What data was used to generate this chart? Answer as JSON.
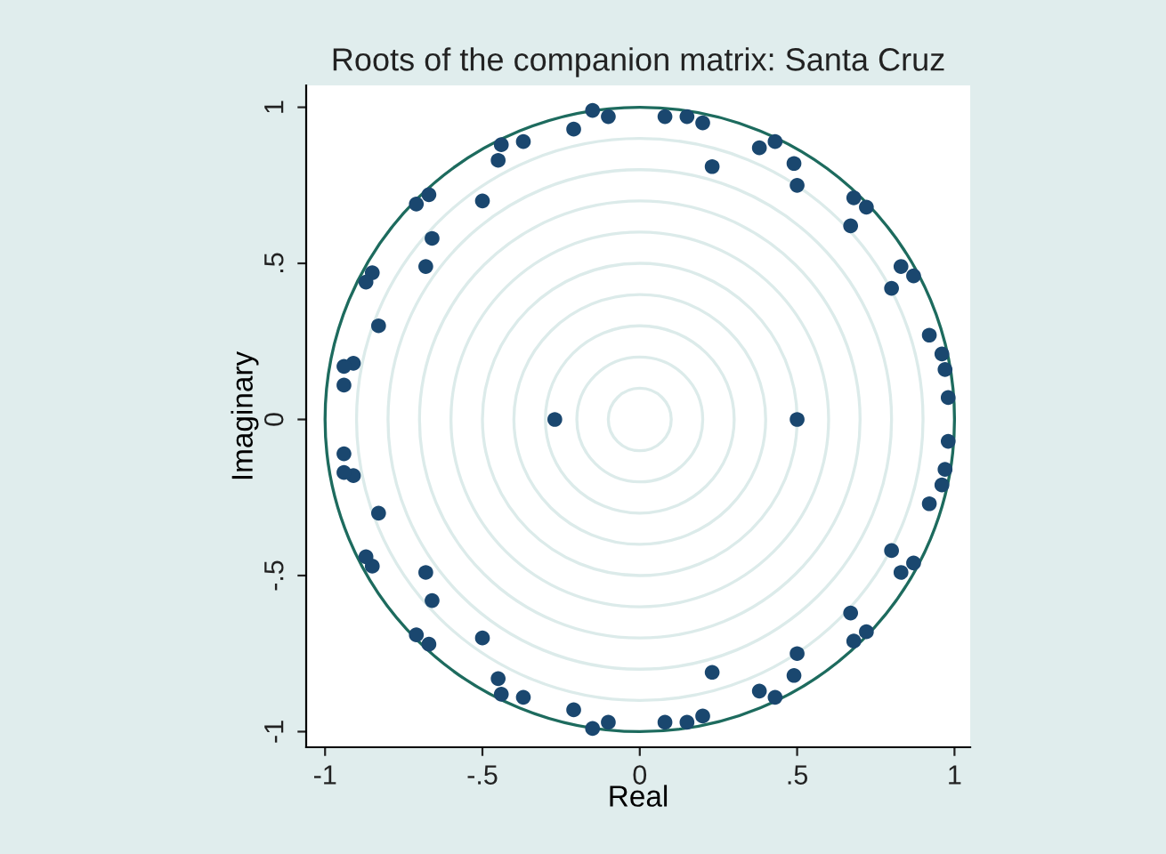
{
  "chart_data": {
    "type": "scatter",
    "title": "Roots of the companion matrix: Santa Cruz",
    "xlabel": "Real",
    "ylabel": "Imaginary",
    "x": [
      -0.15,
      -0.1,
      -0.21,
      -0.37,
      -0.44,
      -0.45,
      -0.67,
      -0.71,
      -0.5,
      -0.66,
      -0.68,
      -0.85,
      -0.87,
      -0.83,
      -0.91,
      -0.94,
      -0.94,
      -0.27,
      0.08,
      0.15,
      0.2,
      0.23,
      0.38,
      0.43,
      0.49,
      0.5,
      0.68,
      0.72,
      0.67,
      0.83,
      0.87,
      0.8,
      0.92,
      0.96,
      0.97,
      0.98,
      0.5,
      -0.15,
      -0.1,
      -0.21,
      -0.37,
      -0.44,
      -0.45,
      -0.67,
      -0.71,
      -0.5,
      -0.66,
      -0.68,
      -0.85,
      -0.87,
      -0.83,
      -0.91,
      -0.94,
      -0.94,
      0.08,
      0.15,
      0.2,
      0.23,
      0.38,
      0.43,
      0.49,
      0.5,
      0.68,
      0.72,
      0.67,
      0.83,
      0.87,
      0.8,
      0.92,
      0.96,
      0.97,
      0.98
    ],
    "values": [
      0.99,
      0.97,
      0.93,
      0.89,
      0.88,
      0.83,
      0.72,
      0.69,
      0.7,
      0.58,
      0.49,
      0.47,
      0.44,
      0.3,
      0.18,
      0.17,
      0.11,
      0.0,
      0.97,
      0.97,
      0.95,
      0.81,
      0.87,
      0.89,
      0.82,
      0.75,
      0.71,
      0.68,
      0.62,
      0.49,
      0.46,
      0.42,
      0.27,
      0.21,
      0.16,
      0.07,
      0.0,
      -0.99,
      -0.97,
      -0.93,
      -0.89,
      -0.88,
      -0.83,
      -0.72,
      -0.69,
      -0.7,
      -0.58,
      -0.49,
      -0.47,
      -0.44,
      -0.3,
      -0.18,
      -0.17,
      -0.11,
      -0.97,
      -0.97,
      -0.95,
      -0.81,
      -0.87,
      -0.89,
      -0.82,
      -0.75,
      -0.71,
      -0.68,
      -0.62,
      -0.49,
      -0.46,
      -0.42,
      -0.27,
      -0.21,
      -0.16,
      -0.07
    ],
    "color": "#1a476f",
    "marker": "circle",
    "xlim": [
      -1.06,
      1.05
    ],
    "ylim": [
      -1.05,
      1.07
    ],
    "xticks": [
      {
        "value": -1,
        "label": "-1"
      },
      {
        "value": -0.5,
        "label": "-.5"
      },
      0,
      {
        "value": 0.5,
        "label": ".5"
      },
      1
    ],
    "yticks": [
      {
        "value": -1,
        "label": "-1"
      },
      {
        "value": -0.5,
        "label": "-.5"
      },
      0,
      {
        "value": 0.5,
        "label": ".5"
      },
      1
    ]
  }
}
